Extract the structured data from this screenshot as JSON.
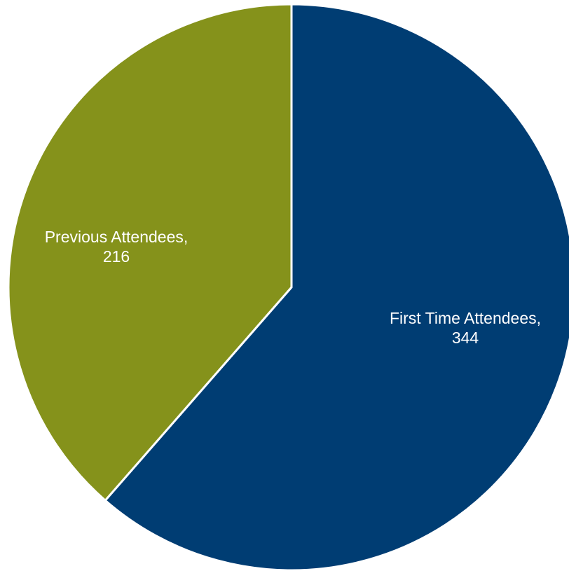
{
  "chart_data": {
    "type": "pie",
    "title": "",
    "start_angle_deg": 0,
    "direction": "clockwise",
    "slices": [
      {
        "category": "First Time Attendees",
        "value": 344,
        "label_line1": "First Time Attendees,",
        "label_line2": "344",
        "color": "#003d73"
      },
      {
        "category": "Previous Attendees",
        "value": 216,
        "label_line1": "Previous Attendees,",
        "label_line2": "216",
        "color": "#85921b"
      }
    ]
  }
}
